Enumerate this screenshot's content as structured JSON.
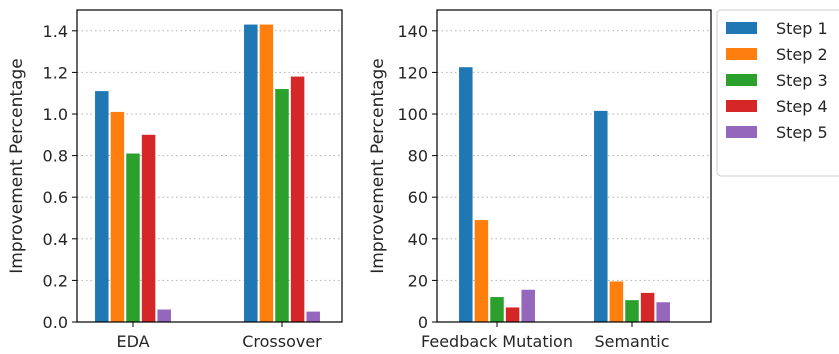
{
  "legend": {
    "placement": "outside-right",
    "entries": [
      {
        "label": "Step 1",
        "color": "#1f77b4"
      },
      {
        "label": "Step 2",
        "color": "#ff7f0e"
      },
      {
        "label": "Step 3",
        "color": "#2ca02c"
      },
      {
        "label": "Step 4",
        "color": "#d62728"
      },
      {
        "label": "Step 5",
        "color": "#9467bd"
      }
    ]
  },
  "chart_data": [
    {
      "type": "bar",
      "ylabel": "Improvement Percentage",
      "xlabel": "",
      "categories": [
        "EDA",
        "Crossover"
      ],
      "ylim": [
        0,
        1.5
      ],
      "yticks": [
        "0.0",
        "0.2",
        "0.4",
        "0.6",
        "0.8",
        "1.0",
        "1.2",
        "1.4"
      ],
      "ytick_values": [
        0,
        0.2,
        0.4,
        0.6,
        0.8,
        1.0,
        1.2,
        1.4
      ],
      "grid": "horizontal dotted",
      "series": [
        {
          "name": "Step 1",
          "values": [
            1.11,
            1.43
          ]
        },
        {
          "name": "Step 2",
          "values": [
            1.01,
            1.43
          ]
        },
        {
          "name": "Step 3",
          "values": [
            0.81,
            1.12
          ]
        },
        {
          "name": "Step 4",
          "values": [
            0.9,
            1.18
          ]
        },
        {
          "name": "Step 5",
          "values": [
            0.06,
            0.05
          ]
        }
      ]
    },
    {
      "type": "bar",
      "ylabel": "Improvement Percentage",
      "xlabel": "",
      "categories": [
        "Feedback Mutation",
        "Semantic"
      ],
      "ylim": [
        0,
        150
      ],
      "yticks": [
        "0",
        "20",
        "40",
        "60",
        "80",
        "100",
        "120",
        "140"
      ],
      "ytick_values": [
        0,
        20,
        40,
        60,
        80,
        100,
        120,
        140
      ],
      "grid": "horizontal dotted",
      "series": [
        {
          "name": "Step 1",
          "values": [
            122.5,
            101.5
          ]
        },
        {
          "name": "Step 2",
          "values": [
            49,
            19.5
          ]
        },
        {
          "name": "Step 3",
          "values": [
            12,
            10.5
          ]
        },
        {
          "name": "Step 4",
          "values": [
            7,
            14
          ]
        },
        {
          "name": "Step 5",
          "values": [
            15.5,
            9.5
          ]
        }
      ]
    }
  ]
}
